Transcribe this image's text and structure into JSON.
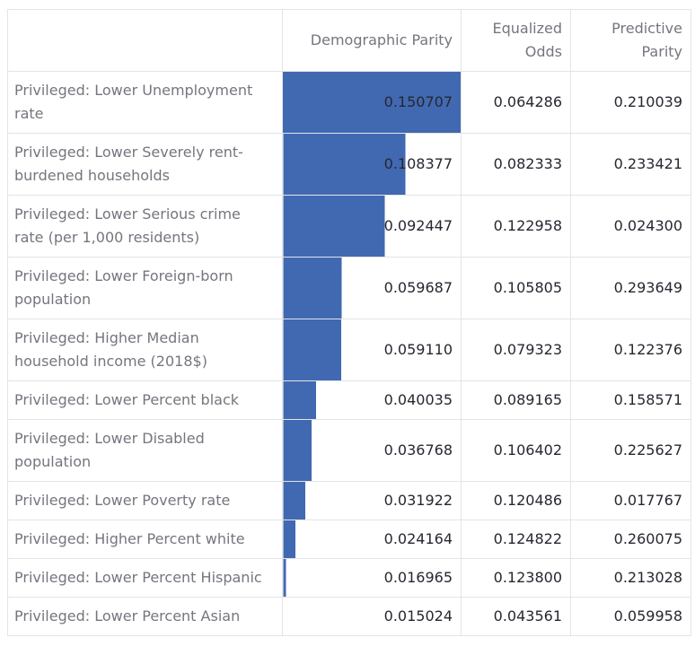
{
  "chart_data": {
    "type": "table",
    "title": "",
    "columns": [
      "Demographic Parity",
      "Equalized\nOdds",
      "Predictive\nParity"
    ],
    "column_keys": [
      "demographic_parity",
      "equalized_odds",
      "predictive_parity"
    ],
    "bar_column": "Demographic Parity",
    "bar_color": "#4169b1",
    "bar_scale_note": "bar width = (value - min) / (max - min), min row has zero-width bar",
    "rows": [
      {
        "label": "Privileged: Lower Unemployment\nrate",
        "demographic_parity": "0.150707",
        "equalized_odds": "0.064286",
        "predictive_parity": "0.210039"
      },
      {
        "label": "Privileged: Lower Severely rent-\nburdened households",
        "demographic_parity": "0.108377",
        "equalized_odds": "0.082333",
        "predictive_parity": "0.233421"
      },
      {
        "label": "Privileged: Lower Serious crime\nrate (per 1,000 residents)",
        "demographic_parity": "0.092447",
        "equalized_odds": "0.122958",
        "predictive_parity": "0.024300"
      },
      {
        "label": "Privileged: Lower Foreign-born\npopulation",
        "demographic_parity": "0.059687",
        "equalized_odds": "0.105805",
        "predictive_parity": "0.293649"
      },
      {
        "label": "Privileged: Higher Median\nhousehold income (2018$)",
        "demographic_parity": "0.059110",
        "equalized_odds": "0.079323",
        "predictive_parity": "0.122376"
      },
      {
        "label": "Privileged: Lower Percent black",
        "demographic_parity": "0.040035",
        "equalized_odds": "0.089165",
        "predictive_parity": "0.158571"
      },
      {
        "label": "Privileged: Lower Disabled\npopulation",
        "demographic_parity": "0.036768",
        "equalized_odds": "0.106402",
        "predictive_parity": "0.225627"
      },
      {
        "label": "Privileged: Lower Poverty rate",
        "demographic_parity": "0.031922",
        "equalized_odds": "0.120486",
        "predictive_parity": "0.017767"
      },
      {
        "label": "Privileged: Higher Percent white",
        "demographic_parity": "0.024164",
        "equalized_odds": "0.124822",
        "predictive_parity": "0.260075"
      },
      {
        "label": "Privileged: Lower Percent Hispanic",
        "demographic_parity": "0.016965",
        "equalized_odds": "0.123800",
        "predictive_parity": "0.213028"
      },
      {
        "label": "Privileged: Lower Percent Asian",
        "demographic_parity": "0.015024",
        "equalized_odds": "0.043561",
        "predictive_parity": "0.059958"
      }
    ]
  }
}
